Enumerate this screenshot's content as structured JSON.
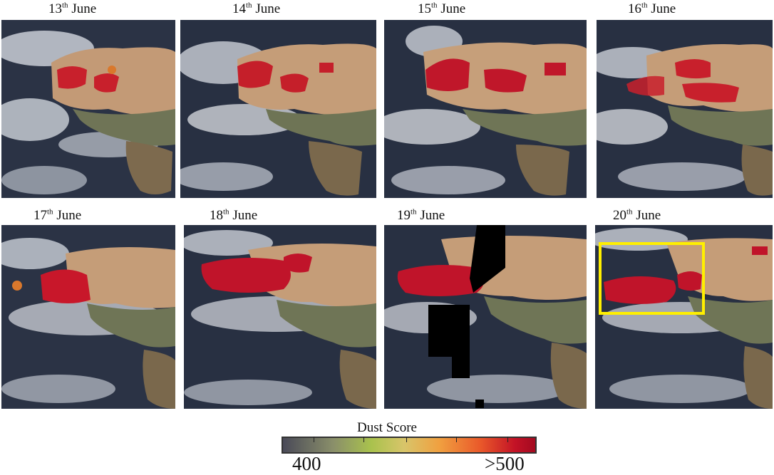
{
  "panels": [
    {
      "day": "13",
      "suffix": "th",
      "month": "June"
    },
    {
      "day": "14",
      "suffix": "th",
      "month": "June"
    },
    {
      "day": "15",
      "suffix": "th",
      "month": "June"
    },
    {
      "day": "16",
      "suffix": "th",
      "month": "June"
    },
    {
      "day": "17",
      "suffix": "th",
      "month": "June"
    },
    {
      "day": "18",
      "suffix": "th",
      "month": "June"
    },
    {
      "day": "19",
      "suffix": "th",
      "month": "June"
    },
    {
      "day": "20",
      "suffix": "th",
      "month": "June"
    }
  ],
  "colorbar": {
    "title": "Dust Score",
    "min_label": "400",
    "max_label": ">500",
    "colors": [
      "#4a4a58",
      "#a9c24d",
      "#f0a040",
      "#c31226"
    ]
  },
  "highlight_color": "#ffef00"
}
